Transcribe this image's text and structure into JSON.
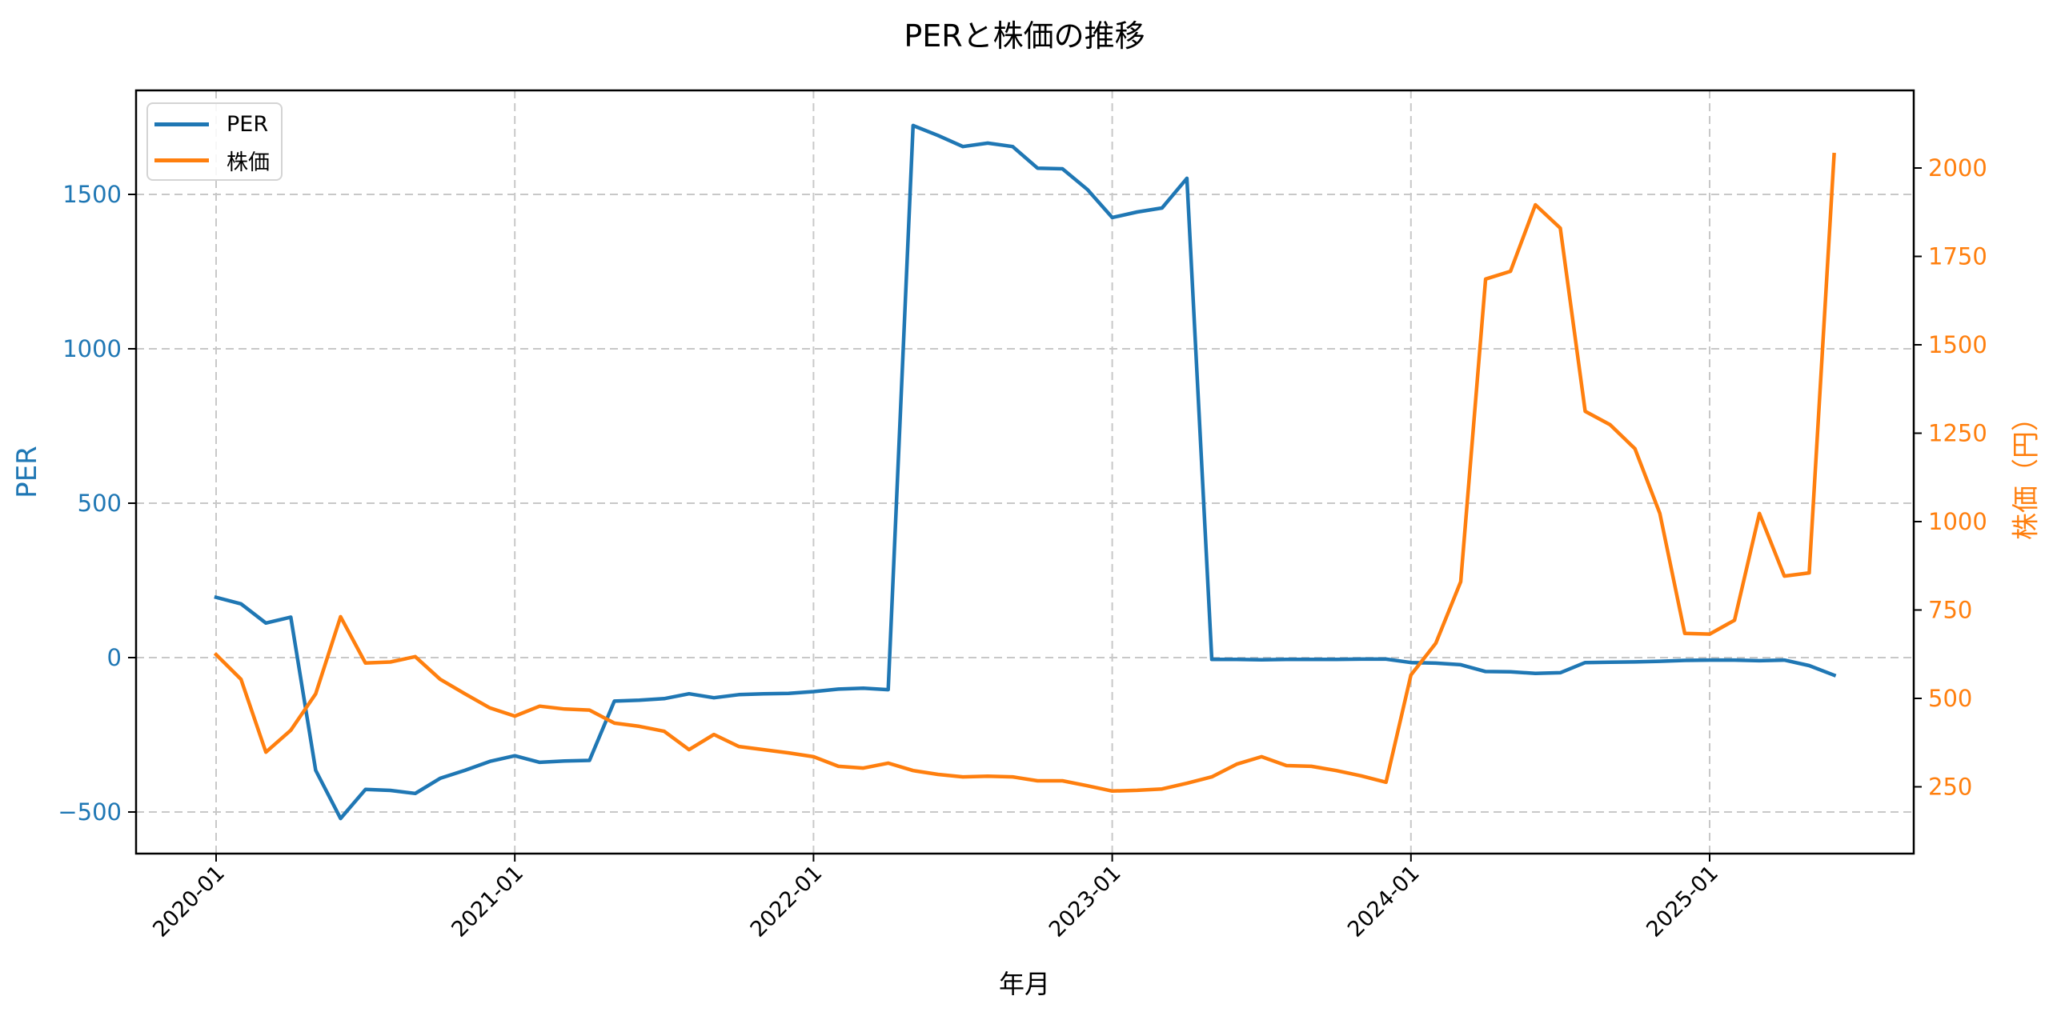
{
  "chart": {
    "title": "PERと株価の推移",
    "xlabel": "年月",
    "ylabel_left": "PER",
    "ylabel_right": "株価（円）",
    "legend": [
      {
        "label": "PER",
        "color": "#1f77b4"
      },
      {
        "label": "株価",
        "color": "#ff7f0e"
      }
    ],
    "x_ticks": [
      "2020-01",
      "2021-01",
      "2022-01",
      "2023-01",
      "2024-01",
      "2025-01"
    ],
    "y_left_ticks": [
      "−500",
      "0",
      "500",
      "1000",
      "1500"
    ],
    "y_right_ticks": [
      "250",
      "500",
      "750",
      "1000",
      "1250",
      "1500",
      "1750",
      "2000"
    ],
    "colors": {
      "per": "#1f77b4",
      "price": "#ff7f0e",
      "grid": "#c8c8c8",
      "axis": "#000000"
    }
  },
  "chart_data": {
    "type": "line",
    "title": "PERと株価の推移",
    "xlabel": "年月",
    "ylabel": "PER",
    "ylabel_secondary": "株価（円）",
    "legend_position": "upper left",
    "grid": true,
    "x": [
      "2020-01",
      "2020-02",
      "2020-03",
      "2020-04",
      "2020-05",
      "2020-06",
      "2020-07",
      "2020-08",
      "2020-09",
      "2020-10",
      "2020-11",
      "2020-12",
      "2021-01",
      "2021-02",
      "2021-03",
      "2021-04",
      "2021-05",
      "2021-06",
      "2021-07",
      "2021-08",
      "2021-09",
      "2021-10",
      "2021-11",
      "2021-12",
      "2022-01",
      "2022-02",
      "2022-03",
      "2022-04",
      "2022-05",
      "2022-06",
      "2022-07",
      "2022-08",
      "2022-09",
      "2022-10",
      "2022-11",
      "2022-12",
      "2023-01",
      "2023-02",
      "2023-03",
      "2023-04",
      "2023-05",
      "2023-06",
      "2023-07",
      "2023-08",
      "2023-09",
      "2023-10",
      "2023-11",
      "2023-12",
      "2024-01",
      "2024-02",
      "2024-03",
      "2024-04",
      "2024-05",
      "2024-06",
      "2024-07",
      "2024-08",
      "2024-09",
      "2024-10",
      "2024-11",
      "2024-12",
      "2025-01",
      "2025-02",
      "2025-03",
      "2025-04",
      "2025-05",
      "2025-06"
    ],
    "x_ticks": [
      "2020-01",
      "2021-01",
      "2022-01",
      "2023-01",
      "2024-01",
      "2025-01"
    ],
    "ylim": [
      -635,
      1837
    ],
    "ylim_secondary": [
      61,
      2219
    ],
    "y_ticks": [
      -500,
      0,
      500,
      1000,
      1500
    ],
    "y_ticks_secondary": [
      250,
      500,
      750,
      1000,
      1250,
      1500,
      1750,
      2000
    ],
    "series": [
      {
        "name": "PER",
        "axis": "left",
        "color": "#1f77b4",
        "values": [
          195,
          174,
          112,
          131,
          -365,
          -521,
          -427,
          -430,
          -440,
          -391,
          -365,
          -336,
          -318,
          -339,
          -335,
          -333,
          -141,
          -138,
          -133,
          -117,
          -130,
          -120,
          -117,
          -116,
          -110,
          -102,
          -99,
          -104,
          1723,
          1691,
          1655,
          1666,
          1655,
          1585,
          1583,
          1516,
          1425,
          1443,
          1456,
          1552,
          -6,
          -6,
          -7,
          -6,
          -6,
          -6,
          -5,
          -5,
          -16,
          -18,
          -23,
          -45,
          -46,
          -51,
          -49,
          -16,
          -15,
          -14,
          -12,
          -9,
          -8,
          -8,
          -10,
          -8,
          -26,
          -57
        ]
      },
      {
        "name": "株価",
        "axis": "right",
        "color": "#ff7f0e",
        "values": [
          624,
          554,
          348,
          410,
          513,
          731,
          600,
          603,
          618,
          554,
          513,
          473,
          450,
          478,
          470,
          467,
          430,
          421,
          407,
          355,
          398,
          364,
          355,
          346,
          335,
          308,
          303,
          317,
          296,
          285,
          278,
          280,
          278,
          267,
          267,
          253,
          238,
          240,
          244,
          260,
          278,
          314,
          335,
          310,
          308,
          296,
          281,
          263,
          566,
          656,
          830,
          1686,
          1708,
          1896,
          1830,
          1312,
          1274,
          1206,
          1023,
          684,
          682,
          721,
          1023,
          846,
          855,
          2038
        ]
      }
    ]
  }
}
